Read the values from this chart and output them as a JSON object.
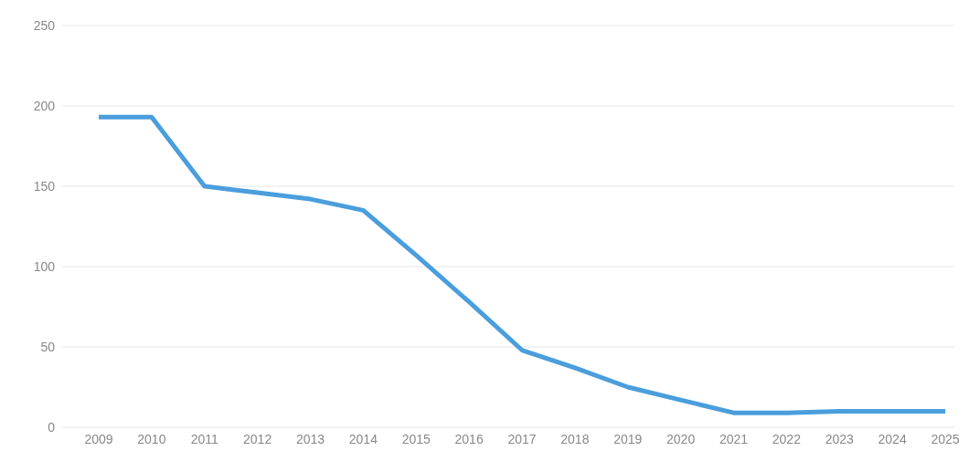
{
  "chart_data": {
    "type": "line",
    "categories": [
      "2009",
      "2010",
      "2011",
      "2012",
      "2013",
      "2014",
      "2015",
      "2016",
      "2017",
      "2018",
      "2019",
      "2020",
      "2021",
      "2022",
      "2023",
      "2024",
      "2025"
    ],
    "series": [
      {
        "color": "#4a9edc",
        "values": [
          193,
          193,
          150,
          146,
          142,
          135,
          107,
          78,
          48,
          37,
          25,
          17,
          9,
          9,
          10,
          10,
          10
        ]
      }
    ],
    "ylim": [
      0,
      250
    ],
    "yticks": [
      0,
      50,
      100,
      150,
      200,
      250
    ],
    "grid": "y",
    "marker": "none",
    "line_style": "solid",
    "legend": false
  }
}
